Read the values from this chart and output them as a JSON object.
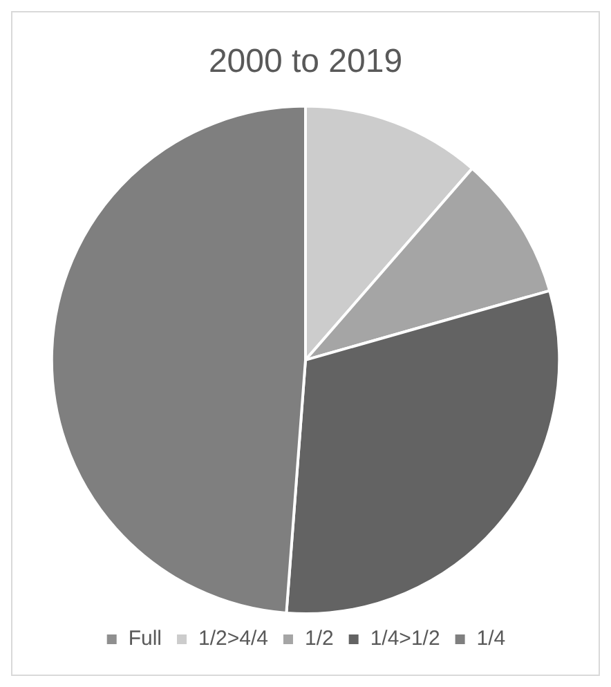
{
  "chart_data": {
    "type": "pie",
    "title": "2000 to 2019",
    "categories": [
      "Full",
      "1/2>4/4",
      "1/2",
      "1/4>1/2",
      "1/4"
    ],
    "values": [
      0,
      11.4,
      9.2,
      30.6,
      48.8
    ],
    "colors": [
      "#8f8f8f",
      "#cccccc",
      "#a5a5a5",
      "#636363",
      "#7f7f7f"
    ],
    "legend": "bottom"
  }
}
